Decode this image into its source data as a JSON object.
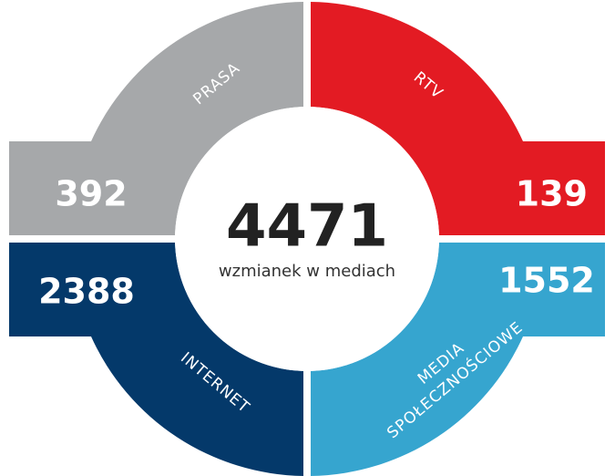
{
  "total": "4471",
  "total_label": "wzmianek w mediach",
  "segments": [
    {
      "label_lines": [
        "PRASA"
      ],
      "value": "392",
      "color": "#a6a8aa"
    },
    {
      "label_lines": [
        "RTV"
      ],
      "value": "139",
      "color": "#e31b23"
    },
    {
      "label_lines": [
        "INTERNET"
      ],
      "value": "2388",
      "color": "#04396a"
    },
    {
      "label_lines": [
        "MEDIA",
        "SPOŁECZNOŚCIOWE"
      ],
      "value": "1552",
      "color": "#36a5cf"
    }
  ]
}
